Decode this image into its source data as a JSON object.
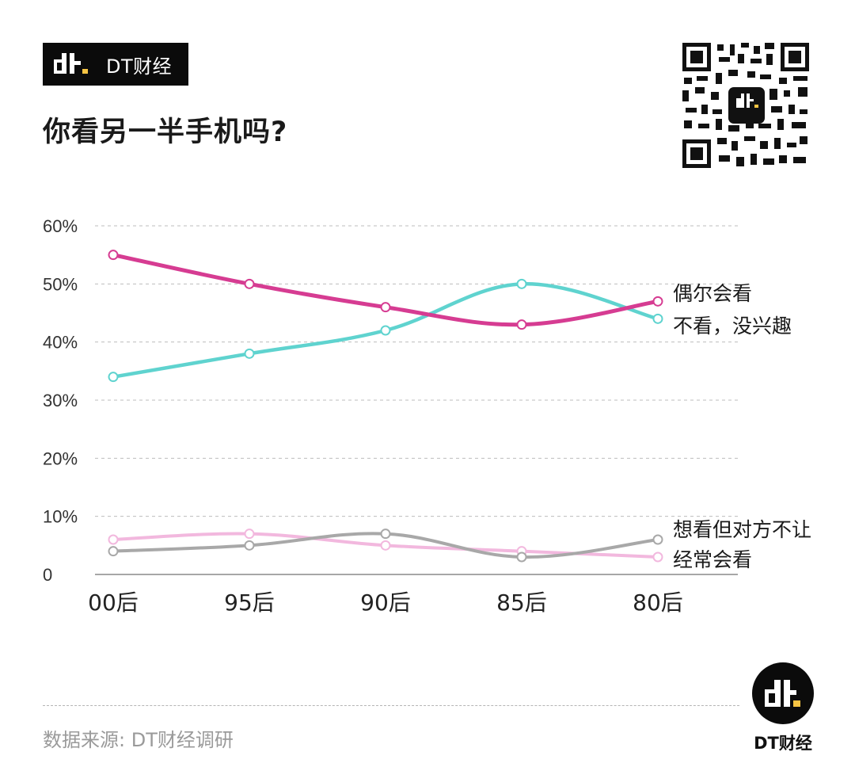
{
  "brand": {
    "name": "DT财经",
    "mark": "dt"
  },
  "title": "你看另一半手机吗?",
  "source": "数据来源: DT财经调研",
  "footer_brand": "DT财经",
  "colors": {
    "magenta": "#d63c92",
    "teal": "#5fd3cf",
    "gray": "#a8a8a8",
    "pink": "#f2b8de",
    "brand_yellow": "#f6c443"
  },
  "chart_data": {
    "type": "line",
    "categories": [
      "00后",
      "95后",
      "90后",
      "85后",
      "80后"
    ],
    "y_ticks": [
      "0",
      "10%",
      "20%",
      "30%",
      "40%",
      "50%",
      "60%"
    ],
    "ylim": [
      0,
      60
    ],
    "grid": true,
    "series": [
      {
        "name": "偶尔会看",
        "color": "#d63c92",
        "values": [
          55,
          50,
          46,
          43,
          47
        ]
      },
      {
        "name": "不看，没兴趣",
        "color": "#5fd3cf",
        "values": [
          34,
          38,
          42,
          50,
          44
        ]
      },
      {
        "name": "想看但对方不让",
        "color": "#a8a8a8",
        "values": [
          4,
          5,
          7,
          3,
          6
        ]
      },
      {
        "name": "经常会看",
        "color": "#f2b8de",
        "values": [
          6,
          7,
          5,
          4,
          3
        ]
      }
    ]
  }
}
